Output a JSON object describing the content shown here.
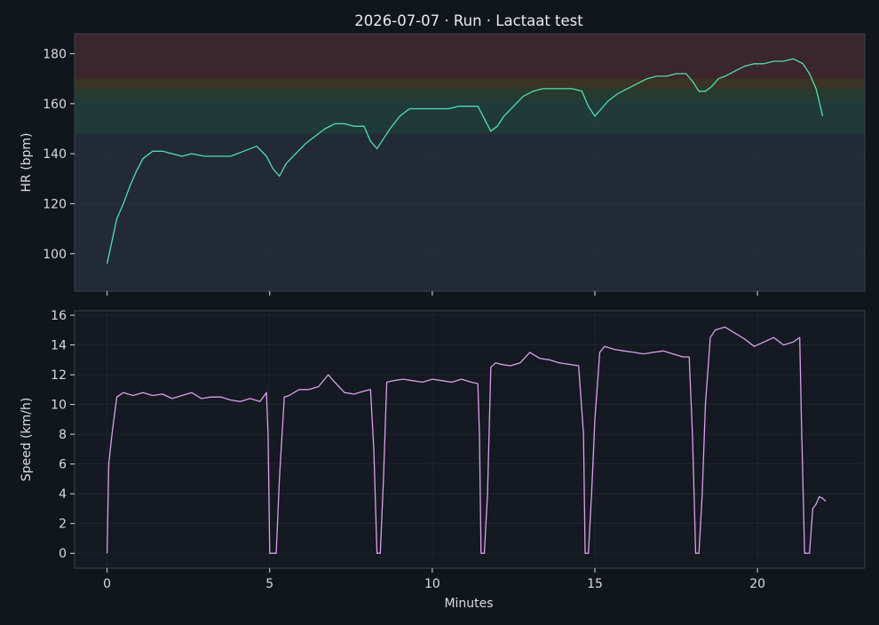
{
  "chart_data": {
    "type": "line",
    "title": "2026-07-07 · Run · Lactaat test",
    "xlabel": "Minutes",
    "xlim": [
      -1.0,
      23.3
    ],
    "xticks": [
      0,
      5,
      10,
      15,
      20
    ],
    "xtick_labels": [
      "0",
      "5",
      "10",
      "15",
      "20"
    ],
    "grid": true,
    "colors": {
      "background": "#11151c",
      "hr_panel": "#222a36",
      "speed_panel": "#151921",
      "hr_line": "#4fe0b0",
      "speed_line": "#d9a0ec",
      "zone_red": "#3c262d",
      "zone_orange": "#3a3424",
      "zone_green": "#1f3a39",
      "text": "#d9dde3",
      "grid": "#2f3845"
    },
    "panels": [
      {
        "ylabel": "HR (bpm)",
        "ylim": [
          85,
          188
        ],
        "yticks": [
          100,
          120,
          140,
          160,
          180
        ],
        "ytick_labels": [
          "100",
          "120",
          "140",
          "160",
          "180"
        ],
        "zones": [
          {
            "from": 148,
            "to": 162,
            "color": "#1f3a39"
          },
          {
            "from": 162,
            "to": 166,
            "color": "#263a2f"
          },
          {
            "from": 166,
            "to": 170,
            "color": "#3a3424"
          },
          {
            "from": 170,
            "to": 188,
            "color": "#3c262d"
          }
        ],
        "series": [
          {
            "color": "#4fe0b0",
            "x": [
              0,
              0.15,
              0.3,
              0.5,
              0.7,
              0.9,
              1.1,
              1.4,
              1.7,
              2.0,
              2.3,
              2.6,
              3.0,
              3.4,
              3.8,
              4.2,
              4.6,
              4.9,
              5.1,
              5.3,
              5.5,
              5.8,
              6.1,
              6.4,
              6.7,
              7.0,
              7.3,
              7.6,
              7.9,
              8.1,
              8.3,
              8.5,
              8.7,
              9.0,
              9.3,
              9.6,
              9.9,
              10.2,
              10.5,
              10.8,
              11.1,
              11.4,
              11.6,
              11.8,
              12.0,
              12.2,
              12.5,
              12.8,
              13.1,
              13.4,
              13.7,
              14.0,
              14.3,
              14.6,
              14.8,
              15.0,
              15.2,
              15.4,
              15.7,
              16.0,
              16.3,
              16.6,
              16.9,
              17.2,
              17.5,
              17.8,
              18.0,
              18.2,
              18.4,
              18.6,
              18.8,
              19.0,
              19.3,
              19.6,
              19.9,
              20.2,
              20.5,
              20.8,
              21.1,
              21.4,
              21.6,
              21.8,
              21.95,
              22.0
            ],
            "y": [
              96,
              105,
              114,
              120,
              127,
              133,
              138,
              141,
              141,
              140,
              139,
              140,
              139,
              139,
              139,
              141,
              143,
              139,
              134,
              131,
              136,
              140,
              144,
              147,
              150,
              152,
              152,
              151,
              151,
              145,
              142,
              146,
              150,
              155,
              158,
              158,
              158,
              158,
              158,
              159,
              159,
              159,
              154,
              149,
              151,
              155,
              159,
              163,
              165,
              166,
              166,
              166,
              166,
              165,
              159,
              155,
              158,
              161,
              164,
              166,
              168,
              170,
              171,
              171,
              172,
              172,
              169,
              165,
              165,
              167,
              170,
              171,
              173,
              175,
              176,
              176,
              177,
              177,
              178,
              176,
              172,
              166,
              158,
              155
            ]
          }
        ]
      },
      {
        "ylabel": "Speed (km/h)",
        "ylim": [
          -1.0,
          16.3
        ],
        "yticks": [
          0,
          2,
          4,
          6,
          8,
          10,
          12,
          14,
          16
        ],
        "ytick_labels": [
          "0",
          "2",
          "4",
          "6",
          "8",
          "10",
          "12",
          "14",
          "16"
        ],
        "series": [
          {
            "color": "#d9a0ec",
            "x": [
              0,
              0.05,
              0.15,
              0.3,
              0.5,
              0.8,
              1.1,
              1.4,
              1.7,
              2.0,
              2.3,
              2.6,
              2.9,
              3.2,
              3.5,
              3.8,
              4.1,
              4.4,
              4.7,
              4.9,
              4.95,
              5.0,
              5.1,
              5.2,
              5.3,
              5.45,
              5.6,
              5.9,
              6.2,
              6.5,
              6.8,
              7.0,
              7.3,
              7.6,
              7.9,
              8.1,
              8.2,
              8.3,
              8.4,
              8.5,
              8.6,
              8.8,
              9.1,
              9.4,
              9.7,
              10.0,
              10.3,
              10.6,
              10.9,
              11.2,
              11.4,
              11.45,
              11.5,
              11.6,
              11.7,
              11.8,
              11.95,
              12.1,
              12.4,
              12.7,
              13.0,
              13.3,
              13.6,
              13.9,
              14.2,
              14.5,
              14.65,
              14.7,
              14.8,
              14.9,
              15.0,
              15.15,
              15.3,
              15.6,
              15.9,
              16.2,
              16.5,
              16.8,
              17.1,
              17.4,
              17.7,
              17.9,
              18.0,
              18.1,
              18.2,
              18.3,
              18.4,
              18.55,
              18.7,
              19.0,
              19.3,
              19.6,
              19.9,
              20.2,
              20.5,
              20.8,
              21.1,
              21.3,
              21.35,
              21.45,
              21.6,
              21.7,
              21.8,
              21.9,
              22.0,
              22.1
            ],
            "y": [
              0,
              6,
              8,
              10.5,
              10.8,
              10.6,
              10.8,
              10.6,
              10.7,
              10.4,
              10.6,
              10.8,
              10.4,
              10.5,
              10.5,
              10.3,
              10.2,
              10.4,
              10.2,
              10.8,
              8,
              0,
              0,
              0,
              5,
              10.5,
              10.6,
              11,
              11,
              11.2,
              12,
              11.5,
              10.8,
              10.7,
              10.9,
              11,
              7,
              0,
              0,
              5,
              11.5,
              11.6,
              11.7,
              11.6,
              11.5,
              11.7,
              11.6,
              11.5,
              11.7,
              11.5,
              11.4,
              8,
              0,
              0,
              4,
              12.5,
              12.8,
              12.7,
              12.6,
              12.8,
              13.5,
              13.1,
              13,
              12.8,
              12.7,
              12.6,
              8,
              0,
              0,
              4,
              9,
              13.5,
              13.9,
              13.7,
              13.6,
              13.5,
              13.4,
              13.5,
              13.6,
              13.4,
              13.2,
              13.2,
              8,
              0,
              0,
              4,
              10,
              14.5,
              15,
              15.2,
              14.8,
              14.4,
              13.9,
              14.2,
              14.5,
              14.0,
              14.2,
              14.5,
              9,
              0,
              0,
              3,
              3.3,
              3.8,
              3.7,
              3.5
            ]
          }
        ]
      }
    ]
  }
}
